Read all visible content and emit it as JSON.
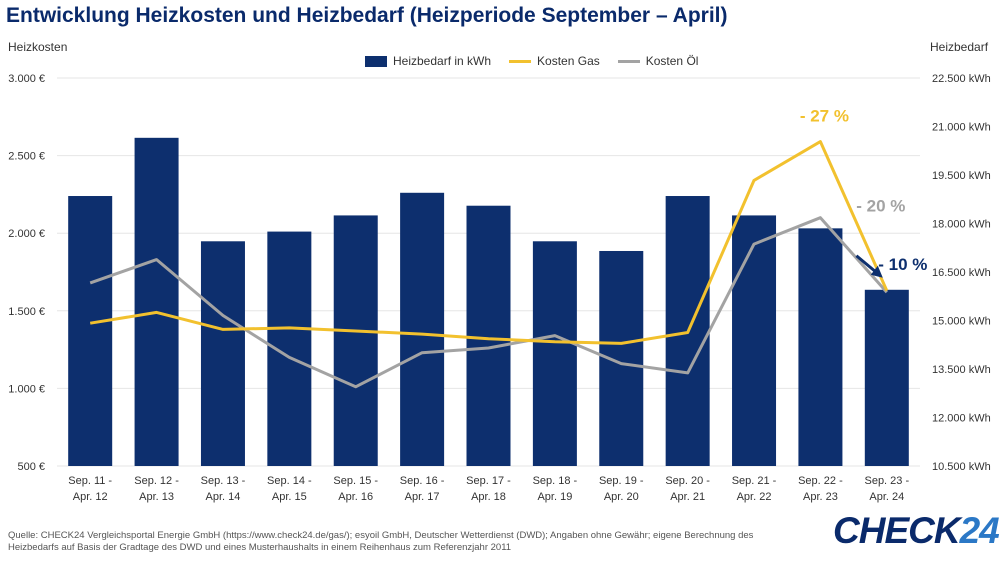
{
  "title": "Entwicklung Heizkosten und Heizbedarf (Heizperiode September – April)",
  "colors": {
    "bar": "#0d2f6e",
    "gas": "#f2c12e",
    "oil": "#a3a3a3",
    "arrow": "#0d2f6e",
    "gas_label": "#f2c12e",
    "oil_label": "#a3a3a3",
    "bar_label": "#0d2f6e"
  },
  "source": "Quelle: CHECK24 Vergleichsportal Energie GmbH (https://www.check24.de/gas/); esyoil GmbH, Deutscher Wetterdienst (DWD); Angaben ohne Gewähr; eigene Berechnung des Heizbedarfs auf Basis der Gradtage des DWD und eines Musterhaushalts in einem Reihenhaus zum Referenzjahr 2011",
  "logo": {
    "text_main": "CHECK",
    "text_accent": "24"
  },
  "chart_data": {
    "type": "bar",
    "title": "Entwicklung Heizkosten und Heizbedarf (Heizperiode September – April)",
    "categories": [
      [
        "Sep. 11 -",
        "Apr. 12"
      ],
      [
        "Sep. 12 -",
        "Apr. 13"
      ],
      [
        "Sep. 13 -",
        "Apr. 14"
      ],
      [
        "Sep. 14 -",
        "Apr. 15"
      ],
      [
        "Sep. 15 -",
        "Apr. 16"
      ],
      [
        "Sep. 16 -",
        "Apr. 17"
      ],
      [
        "Sep. 17 -",
        "Apr. 18"
      ],
      [
        "Sep. 18 -",
        "Apr. 19"
      ],
      [
        "Sep. 19 -",
        "Apr. 20"
      ],
      [
        "Sep. 20 -",
        "Apr. 21"
      ],
      [
        "Sep. 21 -",
        "Apr. 22"
      ],
      [
        "Sep. 22 -",
        "Apr. 23"
      ],
      [
        "Sep. 23 -",
        "Apr. 24"
      ]
    ],
    "left_axis": {
      "label": "Heizkosten",
      "min": 500,
      "max": 3000,
      "ticks": [
        "500 €",
        "1.000 €",
        "1.500 €",
        "2.000 €",
        "2.500 €",
        "3.000 €"
      ]
    },
    "right_axis": {
      "label": "Heizbedarf",
      "min": 10500,
      "max": 22500,
      "ticks": [
        "10.500 kWh",
        "12.000 kWh",
        "13.500 kWh",
        "15.000 kWh",
        "16.500 kWh",
        "18.000 kWh",
        "19.500 kWh",
        "21.000 kWh",
        "22.500 kWh"
      ]
    },
    "series": [
      {
        "name": "Heizbedarf in kWh",
        "kind": "bar",
        "axis": "right",
        "values": [
          18850,
          20650,
          17450,
          17750,
          18250,
          18950,
          18550,
          17450,
          17150,
          18850,
          18250,
          17850,
          15950
        ]
      },
      {
        "name": "Kosten Gas",
        "kind": "line",
        "axis": "left",
        "values": [
          1420,
          1490,
          1380,
          1390,
          1370,
          1350,
          1320,
          1300,
          1290,
          1360,
          2340,
          2590,
          1630
        ]
      },
      {
        "name": "Kosten Öl",
        "kind": "line",
        "axis": "left",
        "values": [
          1680,
          1830,
          1470,
          1200,
          1010,
          1230,
          1260,
          1340,
          1160,
          1100,
          1930,
          2100,
          1620
        ]
      }
    ],
    "annotations": [
      {
        "text": "- 27 %",
        "series": "Kosten Gas"
      },
      {
        "text": "- 20 %",
        "series": "Kosten Öl"
      },
      {
        "text": "- 10 %",
        "series": "Heizbedarf in kWh"
      }
    ],
    "legend_position": "top-center",
    "grid": true
  }
}
